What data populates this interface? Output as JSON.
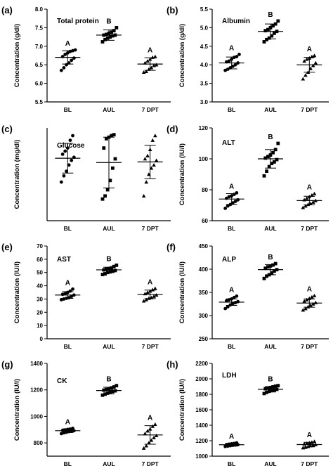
{
  "chart_data": [
    {
      "type": "scatter",
      "panel": "(a)",
      "title": "Total protein",
      "ylabel": "Concentration (g/dl)",
      "ylim": [
        5.5,
        8.0
      ],
      "yticks": [
        "5.5",
        "6.0",
        "6.5",
        "7.0",
        "7.5",
        "8.0"
      ],
      "categories": [
        "BL",
        "AUL",
        "7 DPT"
      ],
      "markers": [
        "circle",
        "square",
        "triangle"
      ],
      "groups": [
        {
          "name": "BL",
          "letter": "A",
          "mean": 6.7,
          "sd": 0.18,
          "values": [
            6.35,
            6.42,
            6.5,
            6.55,
            6.62,
            6.68,
            6.72,
            6.78,
            6.82,
            6.86,
            6.88,
            6.9
          ]
        },
        {
          "name": "AUL",
          "letter": "B",
          "mean": 7.3,
          "sd": 0.14,
          "values": [
            7.12,
            7.18,
            7.22,
            7.25,
            7.28,
            7.3,
            7.3,
            7.32,
            7.35,
            7.38,
            7.42,
            7.5
          ]
        },
        {
          "name": "7 DPT",
          "letter": "A",
          "mean": 6.52,
          "sd": 0.17,
          "values": [
            6.3,
            6.32,
            6.38,
            6.42,
            6.48,
            6.5,
            6.55,
            6.6,
            6.65,
            6.7,
            6.72
          ]
        }
      ]
    },
    {
      "type": "scatter",
      "panel": "(b)",
      "title": "Albumin",
      "ylabel": "Concentration (g/dl)",
      "ylim": [
        3.0,
        5.5
      ],
      "yticks": [
        "3.0",
        "3.5",
        "4.0",
        "4.5",
        "5.0",
        "5.5"
      ],
      "categories": [
        "BL",
        "AUL",
        "7 DPT"
      ],
      "markers": [
        "circle",
        "square",
        "triangle"
      ],
      "groups": [
        {
          "name": "BL",
          "letter": "A",
          "mean": 4.05,
          "sd": 0.16,
          "values": [
            3.85,
            3.88,
            3.92,
            3.96,
            4.0,
            4.05,
            4.08,
            4.1,
            4.15,
            4.2,
            4.22,
            4.28
          ]
        },
        {
          "name": "AUL",
          "letter": "B",
          "mean": 4.9,
          "sd": 0.2,
          "values": [
            4.62,
            4.68,
            4.72,
            4.78,
            4.85,
            4.9,
            4.92,
            4.95,
            5.0,
            5.05,
            5.1,
            5.18
          ]
        },
        {
          "name": "7 DPT",
          "letter": "A",
          "mean": 4.0,
          "sd": 0.2,
          "values": [
            3.62,
            3.72,
            3.8,
            3.9,
            3.98,
            4.05,
            4.1,
            4.15,
            4.18,
            4.22,
            4.25
          ]
        }
      ]
    },
    {
      "type": "scatter",
      "panel": "(c)",
      "title": "Glucose",
      "ylabel": "Concentration (mg/dl)",
      "ylim": [
        105,
        135
      ],
      "yticks": [],
      "categories": [
        "BL",
        "AUL",
        "7 DPT"
      ],
      "markers": [
        "circle",
        "square",
        "triangle"
      ],
      "groups": [
        {
          "name": "BL",
          "letter": "",
          "mean": 125.2,
          "sd": 4.8,
          "values": [
            117.5,
            119.5,
            121.0,
            123.0,
            124.5,
            125.5,
            126.5,
            127.5,
            128.5,
            131.0,
            132.5
          ]
        },
        {
          "name": "AUL",
          "letter": "",
          "mean": 123.8,
          "sd": 8.2,
          "values": [
            112.0,
            113.0,
            115.0,
            118.0,
            122.0,
            125.0,
            128.5,
            131.5,
            132.0,
            132.5,
            132.8
          ]
        },
        {
          "name": "7 DPT",
          "letter": "",
          "mean": 124.0,
          "sd": 5.4,
          "values": [
            113.0,
            117.5,
            120.0,
            122.0,
            123.0,
            124.5,
            125.0,
            126.0,
            128.0,
            131.0,
            132.5
          ]
        }
      ]
    },
    {
      "type": "scatter",
      "panel": "(d)",
      "title": "ALT",
      "ylabel": "Concentration (IU/l)",
      "ylim": [
        60,
        120
      ],
      "yticks": [
        "60",
        "80",
        "100",
        "120"
      ],
      "categories": [
        "BL",
        "AUL",
        "7 DPT"
      ],
      "markers": [
        "circle",
        "square",
        "triangle"
      ],
      "groups": [
        {
          "name": "BL",
          "letter": "A",
          "mean": 74.0,
          "sd": 3.5,
          "values": [
            68.0,
            69.5,
            70.5,
            71.5,
            72.5,
            73.5,
            74.5,
            75.5,
            76.0,
            77.0,
            78.0
          ]
        },
        {
          "name": "AUL",
          "letter": "B",
          "mean": 100.0,
          "sd": 6.0,
          "values": [
            89.0,
            92.0,
            95.0,
            97.0,
            98.0,
            99.5,
            100.5,
            101.5,
            102.5,
            104.0,
            106.0,
            110.0
          ]
        },
        {
          "name": "7 DPT",
          "letter": "A",
          "mean": 73.0,
          "sd": 2.8,
          "values": [
            68.5,
            69.5,
            70.5,
            71.0,
            72.0,
            73.0,
            73.5,
            74.5,
            75.5,
            76.5,
            77.5
          ]
        }
      ]
    },
    {
      "type": "scatter",
      "panel": "(e)",
      "title": "AST",
      "ylabel": "Concentration (IU/l)",
      "ylim": [
        0,
        70
      ],
      "yticks": [
        "0",
        "10",
        "20",
        "30",
        "40",
        "50",
        "60",
        "70"
      ],
      "categories": [
        "BL",
        "AUL",
        "7 DPT"
      ],
      "markers": [
        "circle",
        "square",
        "triangle"
      ],
      "groups": [
        {
          "name": "BL",
          "letter": "A",
          "mean": 33.0,
          "sd": 2.5,
          "values": [
            29.5,
            30.0,
            30.5,
            31.0,
            32.0,
            33.0,
            33.5,
            34.0,
            35.0,
            36.0,
            37.5
          ]
        },
        {
          "name": "AUL",
          "letter": "B",
          "mean": 52.0,
          "sd": 2.0,
          "values": [
            48.5,
            49.0,
            50.0,
            50.5,
            51.0,
            51.5,
            52.0,
            52.5,
            53.0,
            53.5,
            54.5,
            55.5
          ]
        },
        {
          "name": "7 DPT",
          "letter": "A",
          "mean": 33.5,
          "sd": 3.2,
          "values": [
            28.5,
            29.5,
            30.5,
            31.0,
            32.0,
            33.0,
            34.0,
            35.0,
            36.0,
            37.0,
            38.0
          ]
        }
      ]
    },
    {
      "type": "scatter",
      "panel": "(f)",
      "title": "ALP",
      "ylabel": "Concentration (IU/l)",
      "ylim": [
        250,
        450
      ],
      "yticks": [
        "250",
        "300",
        "350",
        "400",
        "450"
      ],
      "categories": [
        "BL",
        "AUL",
        "7 DPT"
      ],
      "markers": [
        "circle",
        "square",
        "triangle"
      ],
      "groups": [
        {
          "name": "BL",
          "letter": "A",
          "mean": 329.0,
          "sd": 7.0,
          "values": [
            315.0,
            319.0,
            323.0,
            326.0,
            328.0,
            330.0,
            332.0,
            334.0,
            336.0,
            339.0,
            342.0
          ]
        },
        {
          "name": "AUL",
          "letter": "B",
          "mean": 399.0,
          "sd": 11.0,
          "values": [
            380.0,
            385.0,
            388.0,
            392.0,
            396.0,
            399.0,
            402.0,
            405.0,
            407.0,
            409.0,
            412.0
          ]
        },
        {
          "name": "7 DPT",
          "letter": "A",
          "mean": 327.0,
          "sd": 9.0,
          "values": [
            312.0,
            315.0,
            319.0,
            322.0,
            325.0,
            328.0,
            331.0,
            334.0,
            337.0,
            340.0,
            343.0
          ]
        }
      ]
    },
    {
      "type": "scatter",
      "panel": "(g)",
      "title": "CK",
      "ylabel": "Concentration (IU/l)",
      "ylim": [
        700,
        1400
      ],
      "yticks": [
        "800",
        "1000",
        "1200",
        "1400"
      ],
      "categories": [
        "BL",
        "AUL",
        "7 DPT"
      ],
      "markers": [
        "circle",
        "square",
        "triangle"
      ],
      "groups": [
        {
          "name": "BL",
          "letter": "A",
          "mean": 892.0,
          "sd": 14.0,
          "values": [
            870.0,
            876.0,
            880.0,
            885.0,
            888.0,
            892.0,
            895.0,
            898.0,
            902.0,
            905.0,
            910.0
          ]
        },
        {
          "name": "AUL",
          "letter": "B",
          "mean": 1195.0,
          "sd": 25.0,
          "values": [
            1160.0,
            1168.0,
            1175.0,
            1182.0,
            1188.0,
            1193.0,
            1198.0,
            1203.0,
            1208.0,
            1215.0,
            1222.0,
            1232.0
          ]
        },
        {
          "name": "7 DPT",
          "letter": "A",
          "mean": 860.0,
          "sd": 70.0,
          "values": [
            760.0,
            778.0,
            800.0,
            820.0,
            840.0,
            855.0,
            870.0,
            890.0,
            905.0,
            925.0,
            940.0
          ]
        }
      ]
    },
    {
      "type": "scatter",
      "panel": "(h)",
      "title": "LDH",
      "ylabel": "Concentration (IU/l)",
      "ylim": [
        1000,
        2200
      ],
      "yticks": [
        "1000",
        "1200",
        "1400",
        "1600",
        "1800",
        "2000",
        "2200"
      ],
      "categories": [
        "BL",
        "AUL",
        "7 DPT"
      ],
      "markers": [
        "circle",
        "square",
        "triangle"
      ],
      "groups": [
        {
          "name": "BL",
          "letter": "A",
          "mean": 1148.0,
          "sd": 18.0,
          "values": [
            1125.0,
            1130.0,
            1135.0,
            1140.0,
            1145.0,
            1148.0,
            1150.0,
            1155.0,
            1160.0,
            1165.0,
            1172.0
          ]
        },
        {
          "name": "AUL",
          "letter": "B",
          "mean": 1865.0,
          "sd": 35.0,
          "values": [
            1810.0,
            1825.0,
            1838.0,
            1848.0,
            1856.0,
            1864.0,
            1872.0,
            1880.0,
            1888.0,
            1896.0,
            1905.0,
            1912.0
          ]
        },
        {
          "name": "7 DPT",
          "letter": "A",
          "mean": 1150.0,
          "sd": 30.0,
          "values": [
            1108.0,
            1115.0,
            1125.0,
            1135.0,
            1142.0,
            1150.0,
            1158.0,
            1165.0,
            1172.0,
            1180.0,
            1190.0
          ]
        }
      ]
    }
  ]
}
